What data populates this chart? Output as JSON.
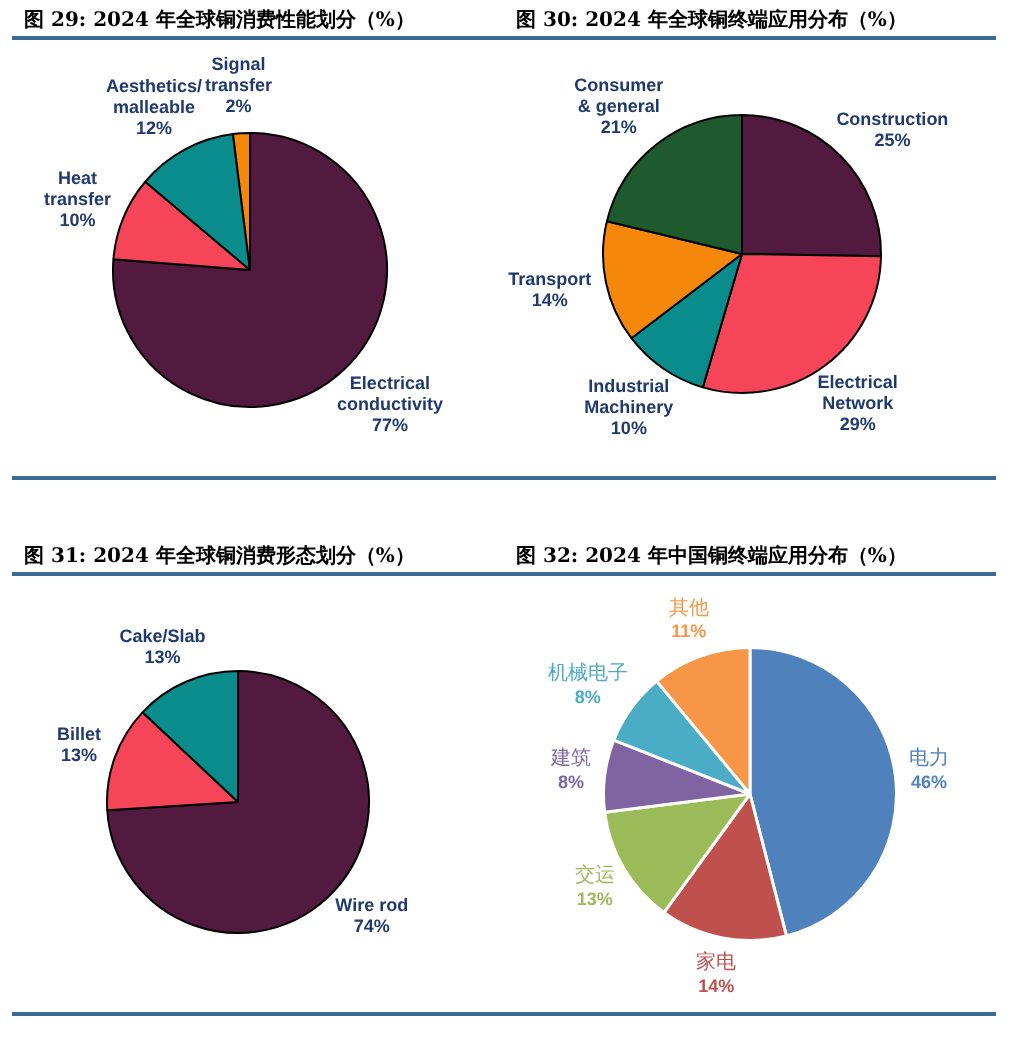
{
  "chart_data": [
    {
      "type": "pie",
      "title": "图 29: 2024 年全球铜消费性能划分（%）",
      "categories": [
        "Electrical conductivity",
        "Heat transfer",
        "Aesthetics/malleable",
        "Signal transfer"
      ],
      "values": [
        77,
        10,
        12,
        2
      ],
      "colors": [
        "#521a3f",
        "#f64458",
        "#0b8c8c",
        "#f5870a"
      ],
      "value_labels": [
        "77%",
        "10%",
        "12%",
        "2%"
      ]
    },
    {
      "type": "pie",
      "title": "图 30: 2024 年全球铜终端应用分布（%）",
      "categories": [
        "Construction",
        "Electrical Network",
        "Industrial Machinery",
        "Transport",
        "Consumer & general"
      ],
      "values": [
        25,
        29,
        10,
        14,
        21
      ],
      "colors": [
        "#521a3f",
        "#f64458",
        "#0b8c8c",
        "#f5870a",
        "#1f5a2f"
      ],
      "value_labels": [
        "25%",
        "29%",
        "10%",
        "14%",
        "21%"
      ]
    },
    {
      "type": "pie",
      "title": "图 31: 2024 年全球铜消费形态划分（%）",
      "categories": [
        "Wire rod",
        "Billet",
        "Cake/Slab"
      ],
      "values": [
        74,
        13,
        13
      ],
      "colors": [
        "#521a3f",
        "#f64458",
        "#0b8c8c"
      ],
      "value_labels": [
        "74%",
        "13%",
        "13%"
      ]
    },
    {
      "type": "pie",
      "title": "图 32: 2024 年中国铜终端应用分布（%）",
      "categories": [
        "电力",
        "家电",
        "交运",
        "建筑",
        "机械电子",
        "其他"
      ],
      "values": [
        46,
        14,
        13,
        8,
        8,
        11
      ],
      "colors": [
        "#4f81bd",
        "#c0504d",
        "#9bbb59",
        "#8064a2",
        "#4bacc6",
        "#f79646"
      ],
      "value_labels": [
        "46%",
        "14%",
        "13%",
        "8%",
        "8%",
        "11%"
      ]
    }
  ]
}
